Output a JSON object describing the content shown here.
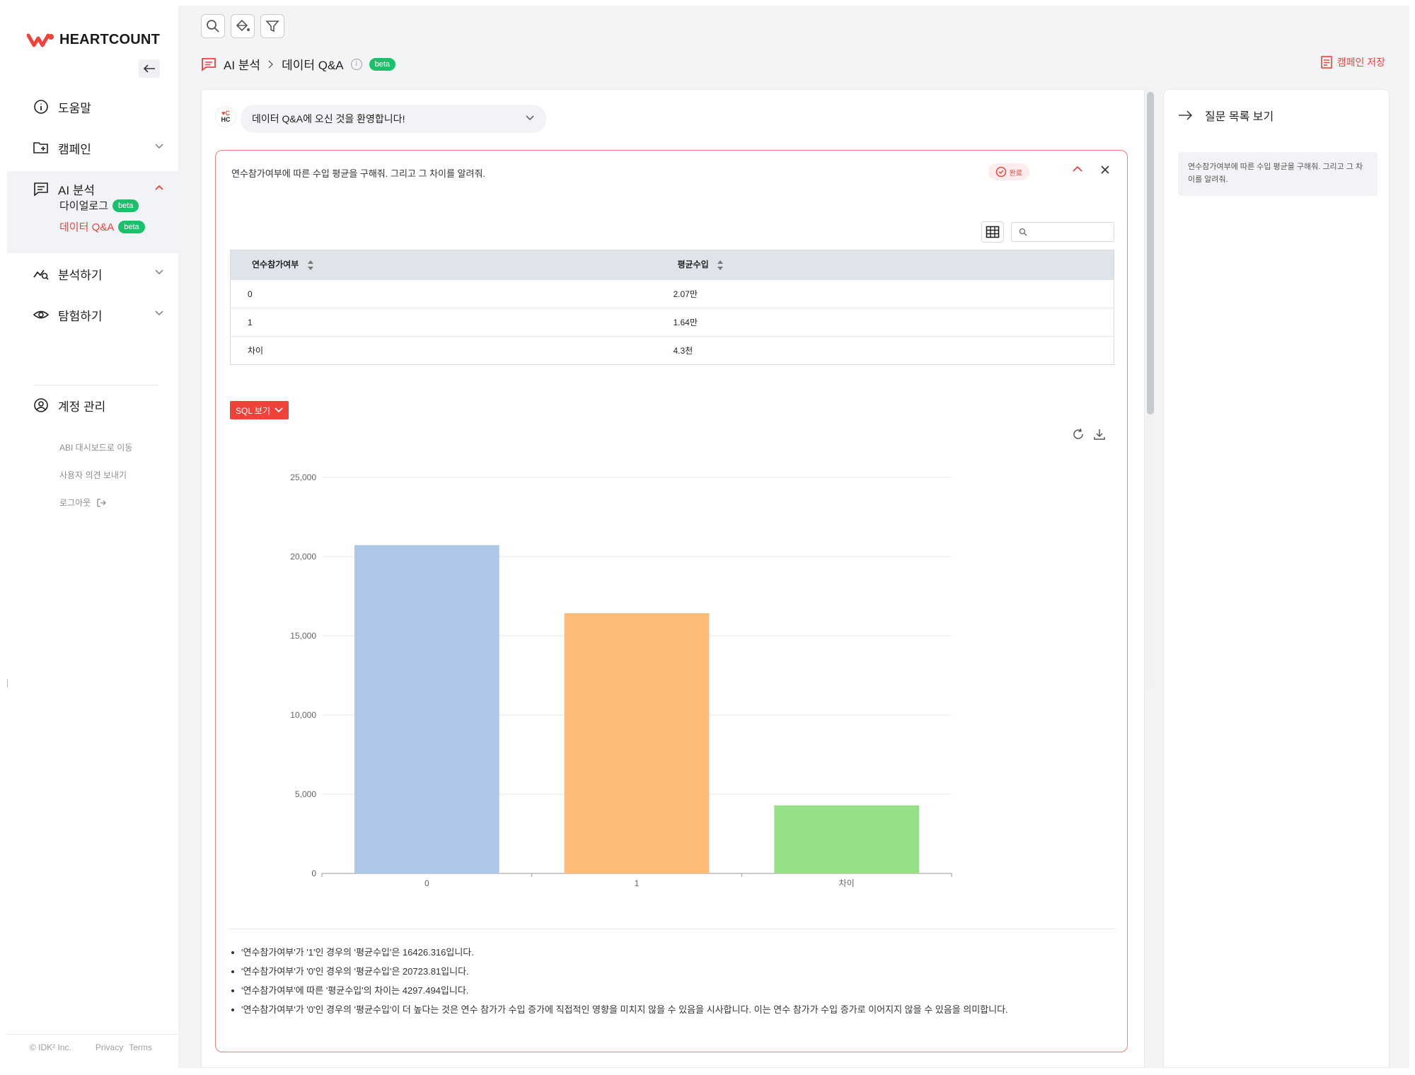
{
  "brand": {
    "name": "HEARTCOUNT",
    "accent": "#f0413a",
    "badge_color": "#19c16a"
  },
  "sidebar": {
    "help": "도움말",
    "campaign": "캠페인",
    "ai": {
      "label": "AI 분석",
      "sub": [
        {
          "label": "다이얼로그",
          "badge": "beta"
        },
        {
          "label": "데이터 Q&A",
          "badge": "beta"
        }
      ]
    },
    "analyze": "분석하기",
    "explore": "탐험하기",
    "account": "계정 관리",
    "links": {
      "abi": "ABI 대시보드로 이동",
      "feedback": "사용자 의견 보내기",
      "logout": "로그아웃"
    },
    "footer": {
      "company": "© IDK² Inc.",
      "privacy": "Privacy",
      "terms": "Terms"
    }
  },
  "toolbar": {
    "icons": [
      "search-icon",
      "paint-bucket-icon",
      "filter-icon"
    ]
  },
  "breadcrumb": {
    "root": "AI 분석",
    "current": "데이터 Q&A",
    "badge": "beta"
  },
  "header": {
    "save_campaign": "캠페인 저장"
  },
  "welcome": {
    "text": "데이터 Q&A에 오신 것을 환영합니다!",
    "avatar_top": "♥C",
    "avatar_bottom": "HC"
  },
  "qa": {
    "question": "연수참가여부에 따른 수입 평균을 구해줘. 그리고 그 차이를 알려줘.",
    "status": "완료",
    "table": {
      "columns": [
        "연수참가여부",
        "평균수입"
      ],
      "rows": [
        [
          "0",
          "2.07만"
        ],
        [
          "1",
          "1.64만"
        ],
        [
          "차이",
          "4.3천"
        ]
      ]
    },
    "sql_button": "SQL 보기",
    "insights": [
      "'연수참가여부'가 '1'인 경우의 '평균수입'은 16426.316입니다.",
      "'연수참가여부'가 '0'인 경우의 '평균수입'은 20723.81입니다.",
      "'연수참가여부'에 따른 '평균수입'의 차이는 4297.494입니다.",
      "'연수참가여부'가 '0'인 경우의 '평균수입'이 더 높다는 것은 연수 참가가 수입 증가에 직접적인 영향을 미치지 않을 수 있음을 시사합니다. 이는 연수 참가가 수입 증가로 이어지지 않을 수 있음을 의미합니다."
    ]
  },
  "chart_data": {
    "type": "bar",
    "categories": [
      "0",
      "1",
      "차이"
    ],
    "values": [
      20723.81,
      16426.316,
      4297.494
    ],
    "colors": [
      "#aec6e8",
      "#fdbb78",
      "#98df8a"
    ],
    "ylim": [
      0,
      25000
    ],
    "yticks": [
      0,
      5000,
      10000,
      15000,
      20000,
      25000
    ],
    "ytick_labels": [
      "0",
      "5,000",
      "10,000",
      "15,000",
      "20,000",
      "25,000"
    ],
    "grid": true,
    "title": "",
    "xlabel": "",
    "ylabel": ""
  },
  "right_panel": {
    "title": "질문 목록 보기",
    "questions": [
      "연수참가여부에 따른 수입 평균을 구해줘. 그리고 그 차이를 알려줘."
    ]
  }
}
